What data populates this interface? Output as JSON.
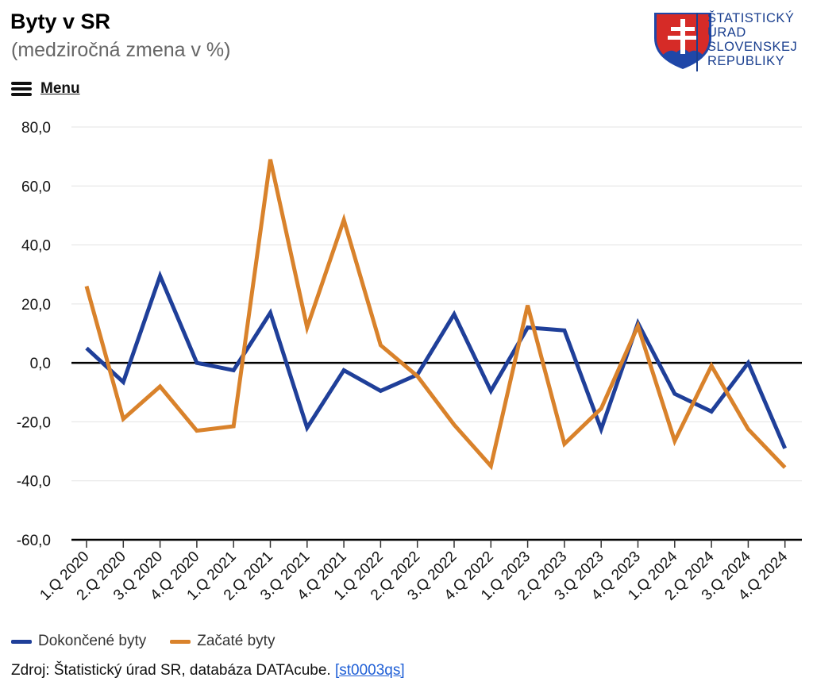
{
  "header": {
    "title": "Byty v SR",
    "subtitle": "(medziročná zmena v %)",
    "menu_label": "Menu"
  },
  "logo": {
    "lines": [
      "ŠTATISTICKÝ",
      "ÚRAD",
      "SLOVENSKEJ",
      "REPUBLIKY"
    ],
    "brand_color": "#1a3f8f",
    "accent_color": "#d62b27"
  },
  "chart_data": {
    "type": "line",
    "title": "Byty v SR",
    "subtitle": "(medziročná zmena v %)",
    "categories": [
      "1.Q 2020",
      "2.Q 2020",
      "3.Q 2020",
      "4.Q 2020",
      "1.Q 2021",
      "2.Q 2021",
      "3.Q 2021",
      "4.Q 2021",
      "1.Q 2022",
      "2.Q 2022",
      "3.Q 2022",
      "4.Q 2022",
      "1.Q 2023",
      "2.Q 2023",
      "3.Q 2023",
      "4.Q 2023",
      "1.Q 2024",
      "2.Q 2024",
      "3.Q 2024",
      "4.Q 2024"
    ],
    "ylim": [
      -60,
      80
    ],
    "yticks": [
      "80,0",
      "60,0",
      "40,0",
      "20,0",
      "0,0",
      "-20,0",
      "-40,0",
      "-60,0"
    ],
    "ytick_values": [
      80,
      60,
      40,
      20,
      0,
      -20,
      -40,
      -60
    ],
    "grid": true,
    "legend_position": "bottom-left",
    "series": [
      {
        "name": "Dokončené byty",
        "color": "#1f3f99",
        "values": [
          5,
          -6.5,
          29.5,
          0,
          -2.5,
          17,
          -22,
          -2.5,
          -9.5,
          -4,
          16.5,
          -9.5,
          12,
          11,
          -22.5,
          13.5,
          -10.5,
          -16.5,
          0,
          -29
        ]
      },
      {
        "name": "Začaté byty",
        "color": "#d9822b",
        "values": [
          26,
          -19,
          -8,
          -23,
          -21.5,
          69,
          12,
          48.5,
          6,
          -4.5,
          -21,
          -35,
          19.5,
          -27.5,
          -15.5,
          12.5,
          -26.5,
          -1,
          -22.5,
          -35.5
        ]
      }
    ]
  },
  "legend": {
    "items": [
      {
        "label": "Dokončené byty",
        "color": "#1f3f99"
      },
      {
        "label": "Začaté byty",
        "color": "#d9822b"
      }
    ]
  },
  "source": {
    "text": "Zdroj: Štatistický úrad SR, databáza DATAcube.",
    "link_label": "[st0003qs]"
  }
}
